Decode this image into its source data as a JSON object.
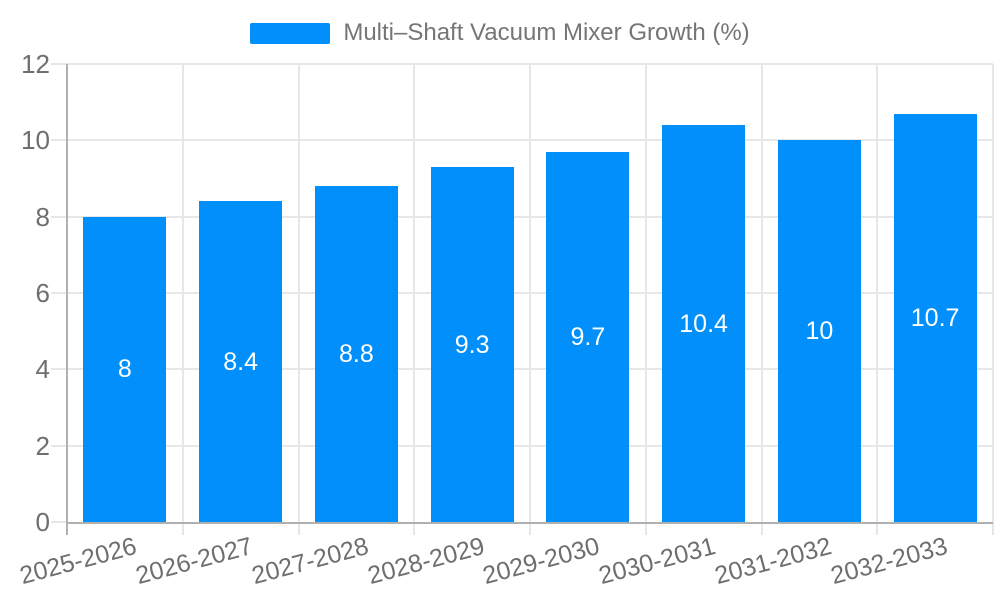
{
  "chart_data": {
    "type": "bar",
    "title": "Multi–Shaft Vacuum Mixer Growth (%)",
    "categories": [
      "2025-2026",
      "2026-2027",
      "2027-2028",
      "2028-2029",
      "2029-2030",
      "2030-2031",
      "2031-2032",
      "2032-2033"
    ],
    "values": [
      8,
      8.4,
      8.8,
      9.3,
      9.7,
      10.4,
      10,
      10.7
    ],
    "data_labels": [
      "8",
      "8.4",
      "8.8",
      "9.3",
      "9.7",
      "10.4",
      "10",
      "10.7"
    ],
    "xlabel": "",
    "ylabel": "",
    "ylim": [
      0,
      12
    ],
    "yticks": [
      0,
      2,
      4,
      6,
      8,
      10,
      12
    ],
    "grid": true,
    "legend_position": "top",
    "colors": {
      "bar": "#008FFB",
      "grid": "#e7e7e7",
      "axis": "#b0b0b0",
      "tick_label": "#6e6e6e",
      "legend_text": "#757575",
      "data_label": "#ffffff",
      "background": "#ffffff"
    }
  }
}
